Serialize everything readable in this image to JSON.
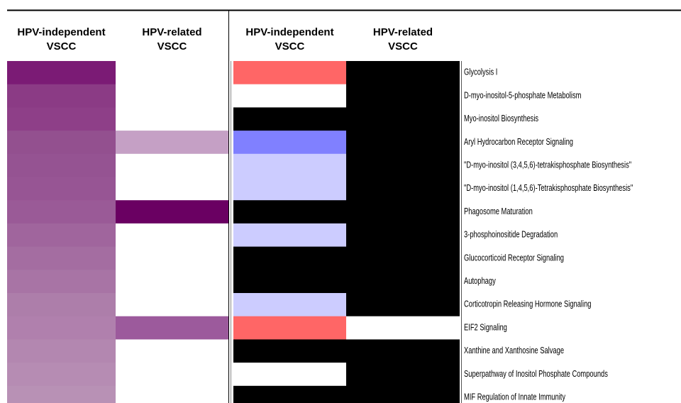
{
  "chart_data": {
    "type": "heatmap",
    "panels": [
      {
        "columns": [
          "HPV-independent VSCC",
          "HPV-related VSCC"
        ],
        "colors": [
          [
            "#7b1b75",
            "#8b3b85",
            "#8e3f88",
            "#93508f",
            "#955392",
            "#975594",
            "#9a5a97",
            "#a0659d",
            "#a46da1",
            "#a874a5",
            "#ad7eaa",
            "#b080ad",
            "#b387b0",
            "#b68cb3",
            "#b891b5"
          ],
          [
            "#ffffff",
            "#ffffff",
            "#ffffff",
            "#c5a0c5",
            "#ffffff",
            "#ffffff",
            "#6a0062",
            "#ffffff",
            "#ffffff",
            "#ffffff",
            "#ffffff",
            "#9c5a9c",
            "#ffffff",
            "#ffffff",
            "#ffffff"
          ]
        ]
      },
      {
        "columns": [
          "HPV-independent VSCC",
          "HPV-related VSCC"
        ],
        "colors": [
          [
            "#ff6666",
            "#ffffff",
            "#000000",
            "#8080ff",
            "#ccccff",
            "#ccccff",
            "#000000",
            "#ccccff",
            "#000000",
            "#000000",
            "#ccccff",
            "#ff6666",
            "#000000",
            "#ffffff",
            "#000000"
          ],
          [
            "#000000",
            "#000000",
            "#000000",
            "#000000",
            "#000000",
            "#000000",
            "#000000",
            "#000000",
            "#000000",
            "#000000",
            "#000000",
            "#ffffff",
            "#000000",
            "#000000",
            "#000000"
          ]
        ]
      }
    ],
    "rows": [
      "Glycolysis I",
      "D-myo-inositol-5-phosphate Metabolism",
      "Myo-inositol Biosynthesis",
      "Aryl Hydrocarbon Receptor Signaling",
      "\"D-myo-inositol (3,4,5,6)-tetrakisphosphate Biosynthesis\"",
      "\"D-myo-inositol (1,4,5,6)-Tetrakisphosphate Biosynthesis\"",
      "Phagosome Maturation",
      "3-phosphoinositide Degradation",
      "Glucocorticoid Receptor Signaling",
      "Autophagy",
      "Corticotropin Releasing Hormone Signaling",
      "EIF2 Signaling",
      "Xanthine and Xanthosine Salvage",
      "Superpathway of Inositol Phosphate Compounds",
      "MIF Regulation of Innate Immunity"
    ]
  }
}
